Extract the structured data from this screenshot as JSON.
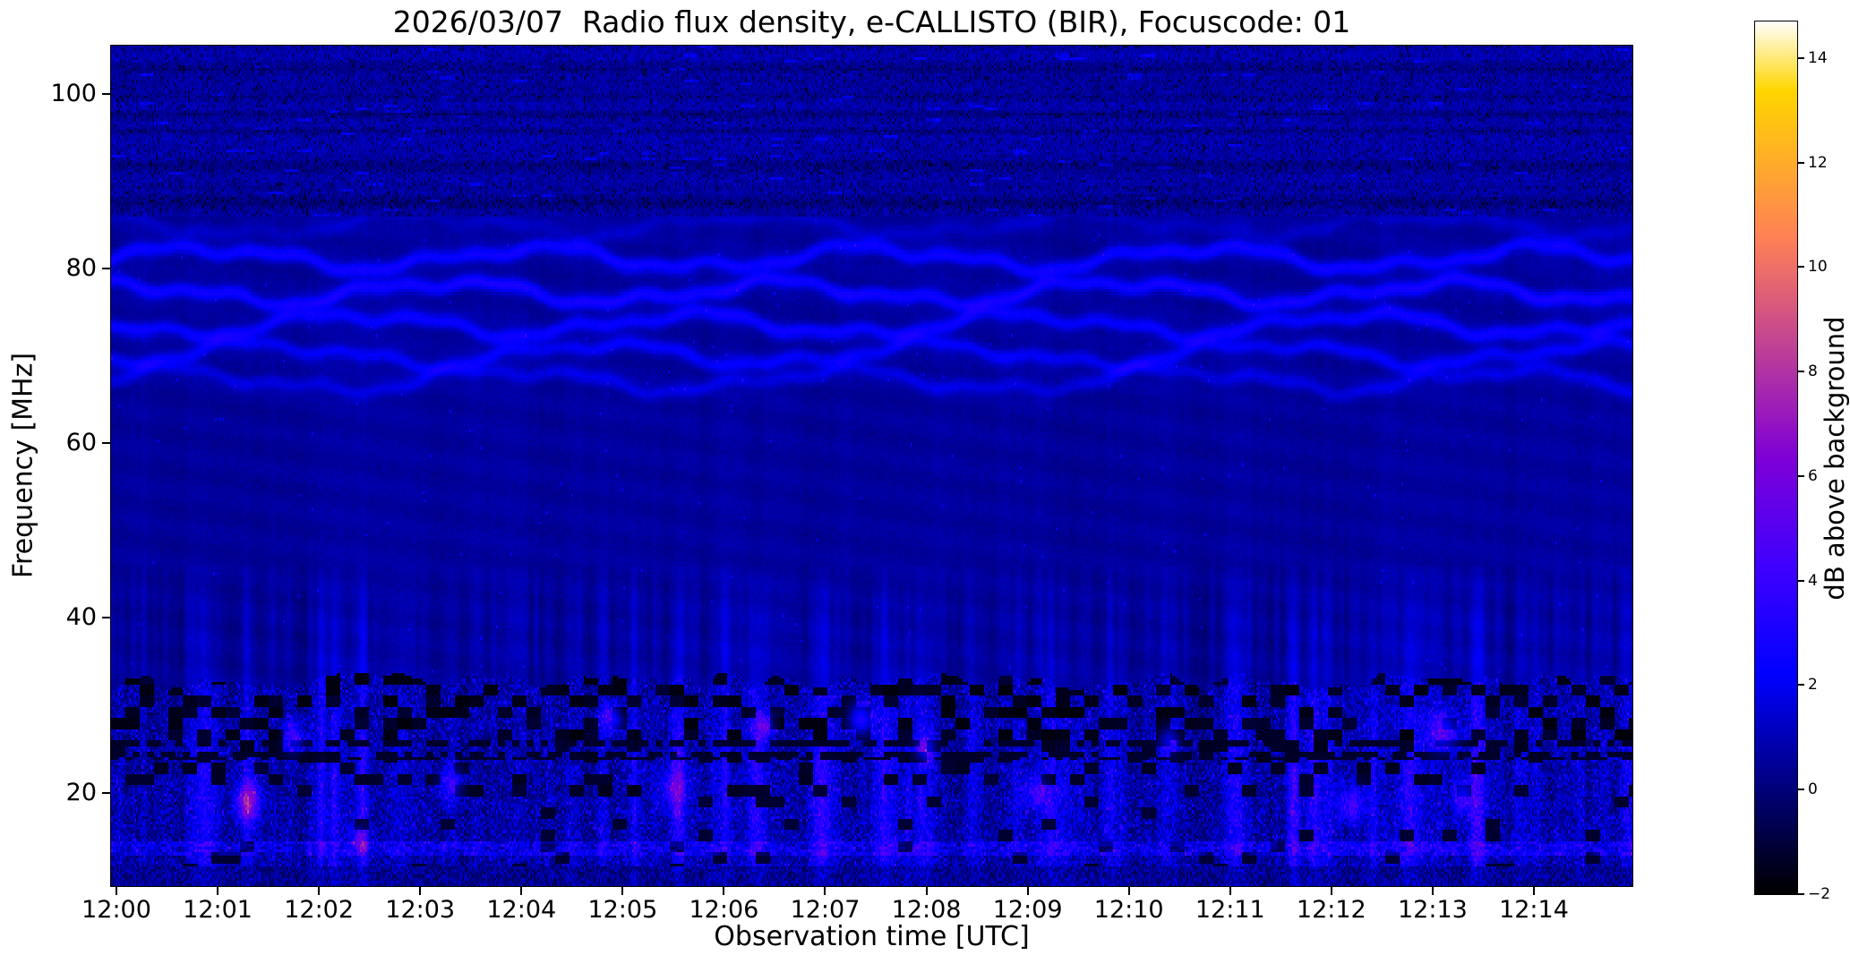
{
  "figure": {
    "background_color": "#ffffff",
    "text_color": "#000000"
  },
  "chart_data": {
    "type": "heatmap",
    "title": "2026/03/07  Radio flux density, e-CALLISTO (BIR), Focuscode: 01",
    "xlabel": "Observation time [UTC]",
    "ylabel": "Frequency [MHz]",
    "x_ticks": [
      "12:00",
      "12:01",
      "12:02",
      "12:03",
      "12:04",
      "12:05",
      "12:06",
      "12:07",
      "12:08",
      "12:09",
      "12:10",
      "12:11",
      "12:12",
      "12:13",
      "12:14"
    ],
    "x_span_minutes": 15,
    "y_tick_values": [
      20,
      40,
      60,
      80,
      100
    ],
    "y_tick_labels": [
      "20",
      "40",
      "60",
      "80",
      "100"
    ],
    "y_range_mhz": [
      9.3,
      105.5
    ],
    "grid": false,
    "legend": null,
    "colorbar": {
      "label": "dB above background",
      "tick_values": [
        -2,
        0,
        2,
        4,
        6,
        8,
        10,
        12,
        14
      ],
      "tick_labels": [
        "−2",
        "0",
        "2",
        "4",
        "6",
        "8",
        "10",
        "12",
        "14"
      ],
      "value_range_db": [
        -2,
        14.7
      ],
      "colormap_name": "gnuplot2",
      "colormap_stops": [
        [
          0.0,
          "#000000"
        ],
        [
          0.125,
          "#000080"
        ],
        [
          0.25,
          "#0000ff"
        ],
        [
          0.375,
          "#4000ff"
        ],
        [
          0.5,
          "#8000d6"
        ],
        [
          0.625,
          "#bf4096"
        ],
        [
          0.75,
          "#ff8057"
        ],
        [
          0.875,
          "#ffbf17"
        ],
        [
          0.92,
          "#ffd600"
        ],
        [
          1.0,
          "#ffffff"
        ]
      ]
    },
    "features": {
      "description": "Quiet-sun radio spectrogram: dark blue background (~0-1 dB above background), wavy ionospheric interference ripples between ~65-85 MHz, speckled noisy rows above ~86 MHz, and a strong broadband RFI band below ~33 MHz containing black dropout patches, dashed dark rows near 24-26 MHz, a bright dashed row near 13.5 MHz and scattered bright blue/magenta bursts.",
      "background_level_db": 0.55,
      "ionospheric_ripples": [
        {
          "f0": 81.2,
          "amp": 2.0
        },
        {
          "f0": 77.3,
          "amp": 2.2
        },
        {
          "f0": 73.6,
          "amp": 1.9
        },
        {
          "f0": 70.2,
          "amp": 1.6
        },
        {
          "f0": 67.2,
          "amp": 1.2
        },
        {
          "f0": 85.0,
          "amp": 0.7
        }
      ],
      "rfi_band_top_mhz": 32.8,
      "speckle_band_min_mhz": 86,
      "dark_dashed_rows_mhz": [
        24.2,
        25.7
      ],
      "bright_dashed_row_mhz": 13.5,
      "rfi_bursts": [
        {
          "t_min": 1.3,
          "f_mhz": 19.0,
          "amp_db": 5.5,
          "wt_min": 0.12,
          "wf_mhz": 2.2
        },
        {
          "t_min": 1.75,
          "f_mhz": 26.5,
          "amp_db": 3.5,
          "wt_min": 0.1,
          "wf_mhz": 1.8
        },
        {
          "t_min": 2.4,
          "f_mhz": 14.5,
          "amp_db": 3.0,
          "wt_min": 0.1,
          "wf_mhz": 1.5
        },
        {
          "t_min": 3.3,
          "f_mhz": 21.0,
          "amp_db": 3.0,
          "wt_min": 0.12,
          "wf_mhz": 2.0
        },
        {
          "t_min": 4.9,
          "f_mhz": 28.5,
          "amp_db": 4.0,
          "wt_min": 0.1,
          "wf_mhz": 1.6
        },
        {
          "t_min": 5.5,
          "f_mhz": 20.5,
          "amp_db": 3.0,
          "wt_min": 0.15,
          "wf_mhz": 2.5
        },
        {
          "t_min": 6.4,
          "f_mhz": 27.5,
          "amp_db": 3.5,
          "wt_min": 0.1,
          "wf_mhz": 1.5
        },
        {
          "t_min": 7.35,
          "f_mhz": 28.5,
          "amp_db": 4.5,
          "wt_min": 0.12,
          "wf_mhz": 1.8
        },
        {
          "t_min": 8.0,
          "f_mhz": 25.0,
          "amp_db": 3.5,
          "wt_min": 0.1,
          "wf_mhz": 1.5
        },
        {
          "t_min": 9.1,
          "f_mhz": 20.0,
          "amp_db": 3.0,
          "wt_min": 0.12,
          "wf_mhz": 2.0
        },
        {
          "t_min": 10.4,
          "f_mhz": 26.0,
          "amp_db": 3.0,
          "wt_min": 0.1,
          "wf_mhz": 1.5
        },
        {
          "t_min": 12.2,
          "f_mhz": 18.5,
          "amp_db": 3.5,
          "wt_min": 0.12,
          "wf_mhz": 2.0
        },
        {
          "t_min": 13.1,
          "f_mhz": 27.0,
          "amp_db": 4.0,
          "wt_min": 0.15,
          "wf_mhz": 2.2
        },
        {
          "t_min": 13.3,
          "f_mhz": 19.5,
          "amp_db": 3.5,
          "wt_min": 0.1,
          "wf_mhz": 2.0
        }
      ]
    }
  }
}
